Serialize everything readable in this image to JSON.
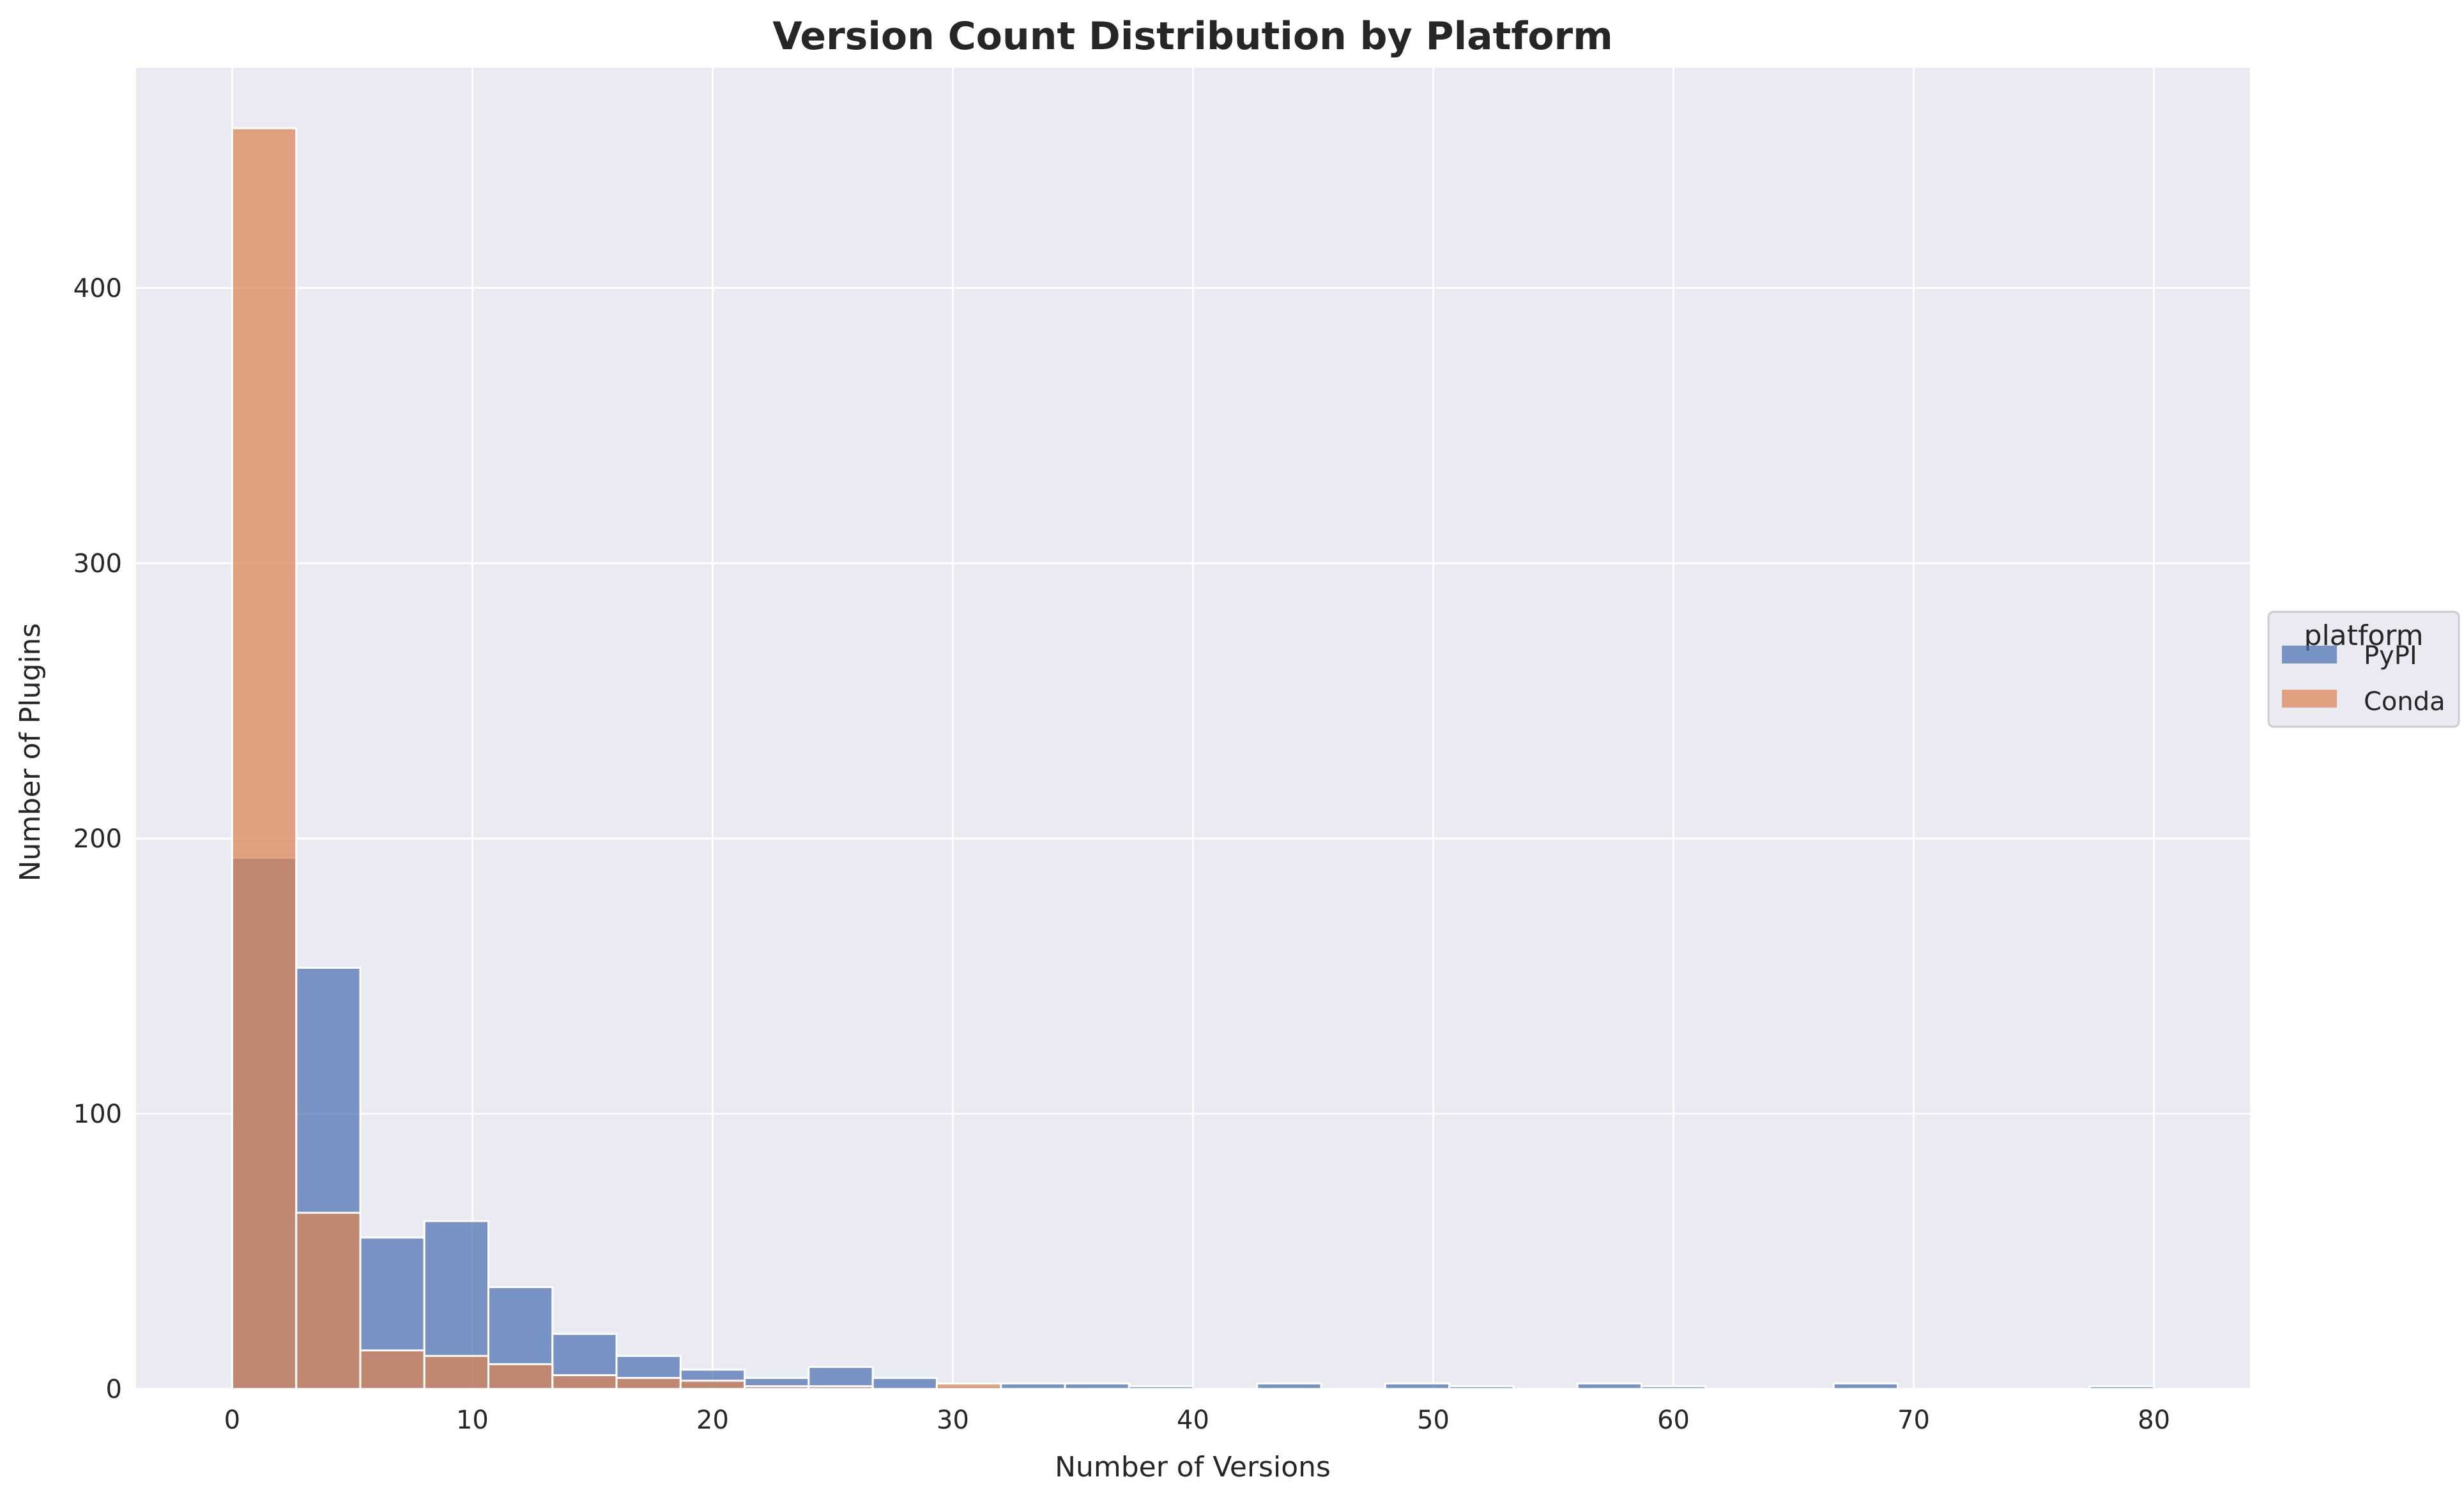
{
  "chart_data": {
    "type": "bar",
    "title": "Version Count Distribution by Platform",
    "xlabel": "Number of Versions",
    "ylabel": "Number of Plugins",
    "xlim": [
      -4,
      84
    ],
    "ylim": [
      0,
      480
    ],
    "xticks": [
      0,
      10,
      20,
      30,
      40,
      50,
      60,
      70,
      80
    ],
    "yticks": [
      0,
      100,
      200,
      300,
      400
    ],
    "grid": true,
    "legend": {
      "title": "platform",
      "placement": "outside-right"
    },
    "bin_width": 2.667,
    "bin_starts": [
      0,
      2.667,
      5.333,
      8,
      10.667,
      13.333,
      16,
      18.667,
      21.333,
      24,
      26.667,
      29.333,
      32,
      34.667,
      37.333,
      40,
      42.667,
      45.333,
      48,
      50.667,
      53.333,
      56,
      58.667,
      61.333,
      64,
      66.667,
      69.333,
      72,
      74.667,
      77.333
    ],
    "series": [
      {
        "name": "PyPI",
        "color": "#4c72b0",
        "values": [
          193,
          153,
          55,
          61,
          37,
          20,
          12,
          7,
          4,
          8,
          4,
          1,
          2,
          2,
          1,
          0,
          2,
          0,
          2,
          1,
          0,
          2,
          1,
          0,
          0,
          2,
          0,
          0,
          0,
          1
        ]
      },
      {
        "name": "Conda",
        "color": "#dd8452",
        "values": [
          458,
          64,
          14,
          12,
          9,
          5,
          4,
          3,
          1,
          1,
          0,
          2,
          0,
          0,
          0,
          0,
          0,
          0,
          0,
          0,
          0,
          0,
          0,
          0,
          0,
          0,
          0,
          0,
          0,
          0
        ]
      }
    ]
  }
}
